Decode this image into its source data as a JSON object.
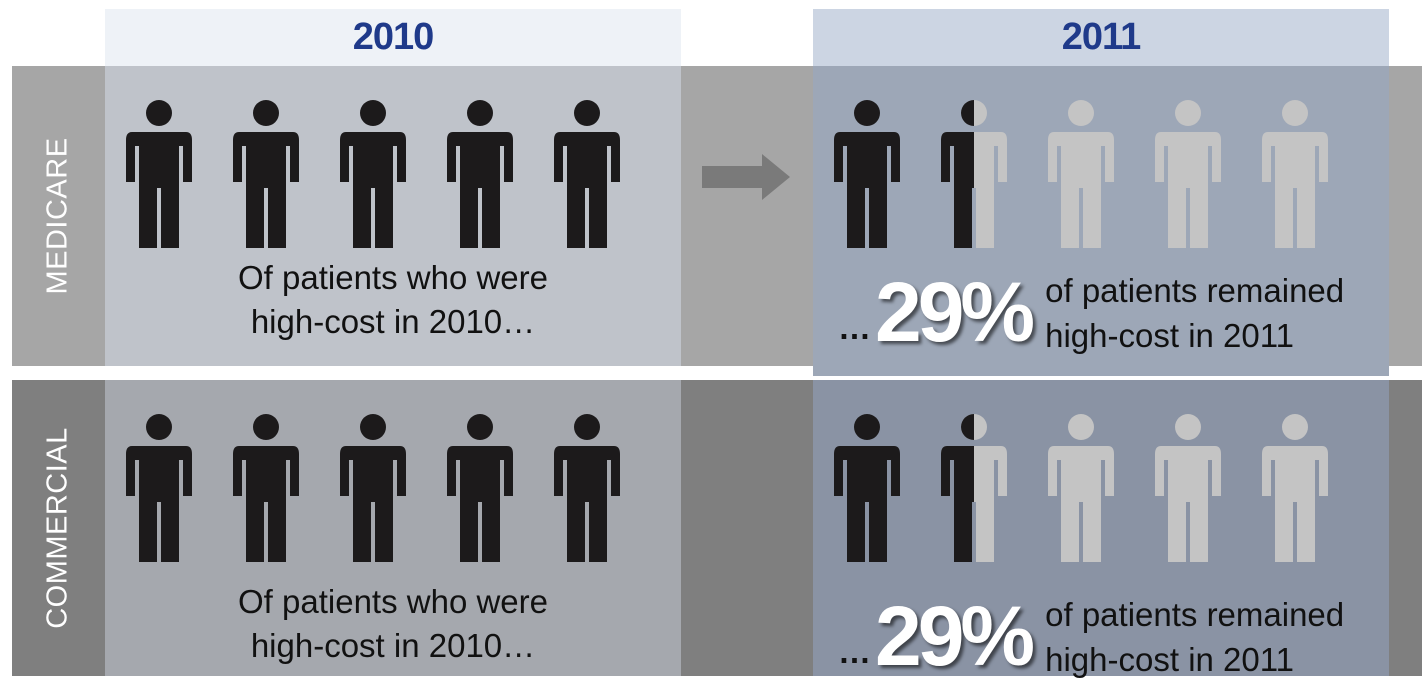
{
  "columns": {
    "left_year": "2010",
    "right_year": "2011"
  },
  "colors": {
    "header_text": "#1f3a8a",
    "left_header_bg": "#eef2f7",
    "right_header_bg": "#ccd5e3",
    "medicare_band": "#a6a6a6",
    "commercial_band": "#7f7f7f",
    "medicare_left_panel": "#bfc3ca",
    "commercial_left_panel": "#a5a8ae",
    "medicare_right_panel": "#9da7b7",
    "commercial_right_panel": "#8a93a4",
    "person_dark": "#1c1a1b",
    "person_light": "#c4c4c4",
    "arrow": "#7a7a7a"
  },
  "icon_names": [
    "person-icon",
    "arrow-right-icon"
  ],
  "rows": [
    {
      "label": "MEDICARE",
      "before_text_line1": "Of patients who were",
      "before_text_line2": "high-cost in 2010…",
      "before_people_count": 5,
      "after_ellipsis": "…",
      "after_percent": "29%",
      "after_percent_value": 29,
      "after_text_line1": "of patients remained",
      "after_text_line2": "high-cost in 2011",
      "after_people_count": 5,
      "after_people_dark_fraction": 0.3
    },
    {
      "label": "COMMERCIAL",
      "before_text_line1": "Of patients who were",
      "before_text_line2": "high-cost in 2010…",
      "before_people_count": 5,
      "after_ellipsis": "…",
      "after_percent": "29%",
      "after_percent_value": 29,
      "after_text_line1": "of patients remained",
      "after_text_line2": "high-cost in 2011",
      "after_people_count": 5,
      "after_people_dark_fraction": 0.3
    }
  ]
}
